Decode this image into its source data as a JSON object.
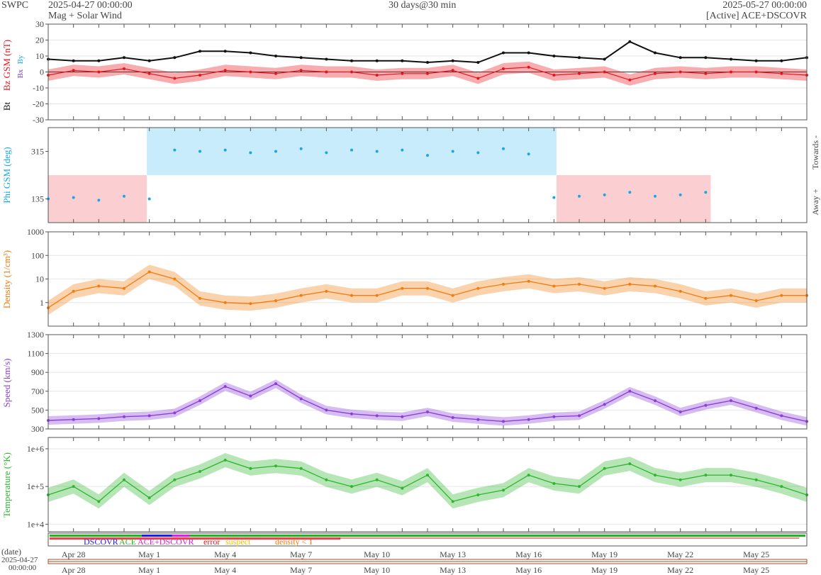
{
  "header": {
    "org": "SWPC",
    "start_time": "2025-04-27 00:00:00",
    "subtitle": "Mag + Solar Wind",
    "span": "30 days@30 min",
    "end_time": "2025-05-27 00:00:00",
    "source": "[Active] ACE+DSCOVR"
  },
  "colors": {
    "bt": "#111111",
    "bz": "#e8141c",
    "bx": "#7a3fbf",
    "by": "#1aa7e6",
    "phi": "#1aa7e6",
    "phi_towards_fill": "#c8ecfb",
    "phi_away_fill": "#fbcfd2",
    "density": "#f07d12",
    "speed": "#8b3fd6",
    "temperature": "#2fb52f",
    "frame": "#555555",
    "grid": "#e6e6e6"
  },
  "chart_data": [
    {
      "type": "line",
      "panel": "magnetic field",
      "ylabel_parts": [
        "Bt",
        "Bz GSM (nT)",
        "Bx",
        "By"
      ],
      "ylim": [
        -30,
        30
      ],
      "yticks": [
        -30,
        -20,
        -10,
        0,
        10,
        20,
        30
      ],
      "series": [
        {
          "name": "Bt",
          "x": [
            0,
            1,
            2,
            3,
            4,
            5,
            6,
            7,
            8,
            9,
            10,
            11,
            12,
            13,
            14,
            15,
            16,
            17,
            18,
            19,
            20,
            21,
            22,
            23,
            24,
            25,
            26,
            27,
            28,
            29,
            30
          ],
          "values": [
            8,
            7,
            7,
            9,
            7,
            9,
            13,
            13,
            12,
            10,
            9,
            8,
            7,
            7,
            7,
            6,
            7,
            6,
            12,
            12,
            10,
            9,
            8,
            19,
            12,
            9,
            9,
            8,
            7,
            7,
            9
          ]
        },
        {
          "name": "Bz GSM",
          "x": [
            0,
            1,
            2,
            3,
            4,
            5,
            6,
            7,
            8,
            9,
            10,
            11,
            12,
            13,
            14,
            15,
            16,
            17,
            18,
            19,
            20,
            21,
            22,
            23,
            24,
            25,
            26,
            27,
            28,
            29,
            30
          ],
          "values": [
            -2,
            1,
            0,
            2,
            -1,
            -4,
            -2,
            1,
            0,
            -1,
            1,
            0,
            0,
            -2,
            -1,
            -1,
            1,
            -4,
            2,
            3,
            -2,
            -1,
            0,
            -5,
            -1,
            0,
            -1,
            0,
            0,
            -1,
            -2
          ]
        }
      ]
    },
    {
      "type": "scatter",
      "panel": "phi",
      "ylabel": "Phi GSM (deg)",
      "ylim": [
        45,
        405
      ],
      "yticks": [
        135,
        315
      ],
      "right_labels": [
        "Towards -",
        "Away +"
      ],
      "sectors": [
        {
          "from": 0,
          "to": 3.9,
          "polarity": "away"
        },
        {
          "from": 3.9,
          "to": 20.1,
          "polarity": "towards"
        },
        {
          "from": 20.1,
          "to": 26.2,
          "polarity": "away"
        }
      ],
      "x": [
        0,
        1,
        2,
        3,
        4,
        5,
        6,
        7,
        8,
        9,
        10,
        11,
        12,
        13,
        14,
        15,
        16,
        17,
        18,
        19,
        20,
        21,
        22,
        23,
        24,
        25,
        26
      ],
      "values": [
        135,
        140,
        130,
        145,
        135,
        320,
        315,
        320,
        310,
        315,
        325,
        310,
        320,
        315,
        320,
        300,
        315,
        310,
        325,
        305,
        140,
        145,
        150,
        160,
        145,
        150,
        160
      ]
    },
    {
      "type": "line",
      "panel": "density",
      "ylabel": "Density (1/cm³)",
      "ylim_log10": [
        -1,
        3
      ],
      "yticks": [
        1,
        10,
        100,
        1000
      ],
      "x": [
        0,
        1,
        2,
        3,
        4,
        5,
        6,
        7,
        8,
        9,
        10,
        11,
        12,
        13,
        14,
        15,
        16,
        17,
        18,
        19,
        20,
        21,
        22,
        23,
        24,
        25,
        26,
        27,
        28,
        29,
        30
      ],
      "values": [
        0.6,
        3,
        5,
        4,
        20,
        10,
        1.5,
        1,
        0.9,
        1.2,
        2,
        3,
        2,
        2,
        4,
        4,
        2,
        4,
        6,
        8,
        5,
        6,
        4,
        6,
        5,
        3,
        1.5,
        2,
        1.2,
        2,
        2
      ]
    },
    {
      "type": "line",
      "panel": "speed",
      "ylabel": "Speed (km/s)",
      "ylim": [
        300,
        1300
      ],
      "yticks": [
        300,
        500,
        700,
        900,
        1100,
        1300
      ],
      "x": [
        0,
        1,
        2,
        3,
        4,
        5,
        6,
        7,
        8,
        9,
        10,
        11,
        12,
        13,
        14,
        15,
        16,
        17,
        18,
        19,
        20,
        21,
        22,
        23,
        24,
        25,
        26,
        27,
        28,
        29,
        30
      ],
      "values": [
        390,
        400,
        410,
        430,
        440,
        470,
        600,
        750,
        650,
        780,
        620,
        500,
        460,
        440,
        430,
        480,
        420,
        400,
        380,
        400,
        430,
        440,
        560,
        700,
        600,
        480,
        550,
        600,
        520,
        440,
        380
      ]
    },
    {
      "type": "line",
      "panel": "temperature",
      "ylabel": "Temperature (°K)",
      "ylim_log10": [
        3.8,
        6.3
      ],
      "yticks": [
        "1e+4",
        "1e+5",
        "1e+6"
      ],
      "x": [
        0,
        1,
        2,
        3,
        4,
        5,
        6,
        7,
        8,
        9,
        10,
        11,
        12,
        13,
        14,
        15,
        16,
        17,
        18,
        19,
        20,
        21,
        22,
        23,
        24,
        25,
        26,
        27,
        28,
        29,
        30
      ],
      "values": [
        60000,
        100000,
        40000,
        150000,
        50000,
        150000,
        250000,
        500000,
        300000,
        350000,
        300000,
        150000,
        100000,
        150000,
        90000,
        200000,
        40000,
        60000,
        80000,
        200000,
        120000,
        100000,
        300000,
        400000,
        200000,
        150000,
        200000,
        200000,
        150000,
        100000,
        60000
      ]
    }
  ],
  "time_axis": {
    "tick_labels": [
      "Apr 28",
      "May 1",
      "May 4",
      "May 7",
      "May 10",
      "May 13",
      "May 16",
      "May 19",
      "May 22",
      "May 25"
    ],
    "tick_days": [
      1,
      4,
      7,
      10,
      13,
      16,
      19,
      22,
      25,
      28
    ],
    "total_days": 30
  },
  "source_bar": {
    "legend": [
      {
        "label": "DSCOVR",
        "color": "#1d1df0"
      },
      {
        "label": "ACE",
        "color": "#22b422"
      },
      {
        "label": "ACE+DSCOVR",
        "color": "#e020e0"
      },
      {
        "label": "error",
        "color": "#e8141c"
      },
      {
        "label": "suspect",
        "color": "#f0c000"
      },
      {
        "label": "density < 1",
        "color": "#f07d12"
      }
    ]
  },
  "footer": {
    "date_label": "(date)",
    "date_value": "2025-04-27",
    "time_value": "00:00:00"
  }
}
